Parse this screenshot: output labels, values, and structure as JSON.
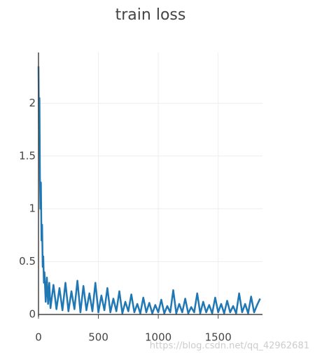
{
  "chart_data": {
    "type": "line",
    "title": "train loss",
    "x": [
      0,
      4,
      8,
      12,
      16,
      20,
      25,
      30,
      35,
      40,
      45,
      50,
      60,
      70,
      80,
      90,
      100,
      125,
      150,
      175,
      200,
      225,
      250,
      275,
      300,
      325,
      350,
      375,
      400,
      425,
      450,
      475,
      500,
      525,
      550,
      575,
      600,
      625,
      650,
      675,
      700,
      725,
      750,
      775,
      800,
      825,
      850,
      875,
      900,
      925,
      950,
      975,
      1000,
      1025,
      1050,
      1075,
      1100,
      1125,
      1150,
      1175,
      1200,
      1225,
      1250,
      1275,
      1300,
      1325,
      1350,
      1375,
      1400,
      1425,
      1450,
      1475,
      1500,
      1525,
      1550,
      1575,
      1600,
      1625,
      1650,
      1675,
      1700,
      1725,
      1750,
      1775,
      1800,
      1825,
      1850
    ],
    "values": [
      2.35,
      1.75,
      2.05,
      1.3,
      1.0,
      1.25,
      0.7,
      0.85,
      0.45,
      0.55,
      0.3,
      0.4,
      0.12,
      0.35,
      0.1,
      0.3,
      0.06,
      0.28,
      0.05,
      0.25,
      0.04,
      0.3,
      0.03,
      0.22,
      0.05,
      0.32,
      0.02,
      0.27,
      0.04,
      0.2,
      0.03,
      0.3,
      0.02,
      0.18,
      0.04,
      0.25,
      0.02,
      0.15,
      0.03,
      0.22,
      0.01,
      0.12,
      0.03,
      0.19,
      0.02,
      0.1,
      0.01,
      0.16,
      0.02,
      0.11,
      0.01,
      0.09,
      0.02,
      0.14,
      0.01,
      0.08,
      0.02,
      0.23,
      0.01,
      0.1,
      0.02,
      0.15,
      0.01,
      0.07,
      0.02,
      0.2,
      0.01,
      0.12,
      0.02,
      0.09,
      0.01,
      0.16,
      0.02,
      0.1,
      0.01,
      0.13,
      0.02,
      0.08,
      0.01,
      0.2,
      0.02,
      0.1,
      0.01,
      0.17,
      0.02,
      0.09,
      0.15
    ],
    "color": "#1f77b4",
    "xlim": [
      0,
      1870
    ],
    "ylim": [
      -0.02,
      2.48
    ],
    "xticks": [
      0,
      500,
      1000,
      1500
    ],
    "yticks": [
      0,
      0.5,
      1,
      1.5,
      2
    ],
    "grid": true
  },
  "watermark": "https://blog.csdn.net/qq_42962681"
}
